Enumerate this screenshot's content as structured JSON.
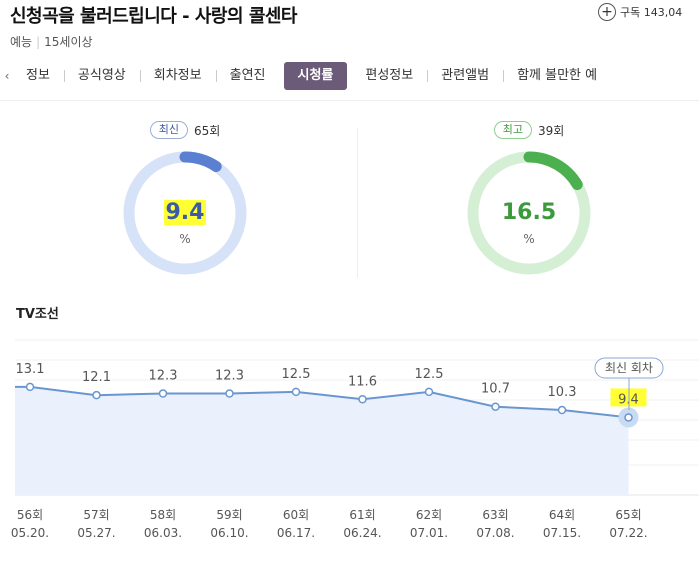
{
  "header": {
    "title": "신청곡을 불러드립니다 - 사랑의 콜센타",
    "subscribe_label": "구독",
    "subscribe_count": "143,04",
    "genre": "예능",
    "rating": "15세이상"
  },
  "tabs": [
    "정보",
    "공식영상",
    "회차정보",
    "출연진",
    "시청률",
    "편성정보",
    "관련앨범",
    "함께 볼만한 예"
  ],
  "active_tab": "시청률",
  "stats": {
    "latest": {
      "badge": "최신",
      "episode": "65회",
      "value": "9.4",
      "unit": "%",
      "fraction": 0.094
    },
    "best": {
      "badge": "최고",
      "episode": "39회",
      "value": "16.5",
      "unit": "%",
      "fraction": 0.165
    }
  },
  "chart_title": "TV조선",
  "latest_callout": "최신 회차",
  "colors": {
    "blue": "#5b7fd1",
    "blue_light": "#d6e2f7",
    "green": "#4cb050",
    "green_light": "#d5efd5",
    "line": "#6a96d0",
    "highlight": "#ffff33"
  },
  "chart_data": {
    "type": "line",
    "categories": [
      "56회",
      "57회",
      "58회",
      "59회",
      "60회",
      "61회",
      "62회",
      "63회",
      "64회",
      "65회"
    ],
    "dates": [
      "05.20.",
      "05.27.",
      "06.03.",
      "06.10.",
      "06.17.",
      "06.24.",
      "07.01.",
      "07.08.",
      "07.15.",
      "07.22."
    ],
    "values": [
      13.1,
      12.1,
      12.3,
      12.3,
      12.5,
      11.6,
      12.5,
      10.7,
      10.3,
      9.4
    ],
    "ylim": [
      0,
      20
    ],
    "grid": true
  }
}
